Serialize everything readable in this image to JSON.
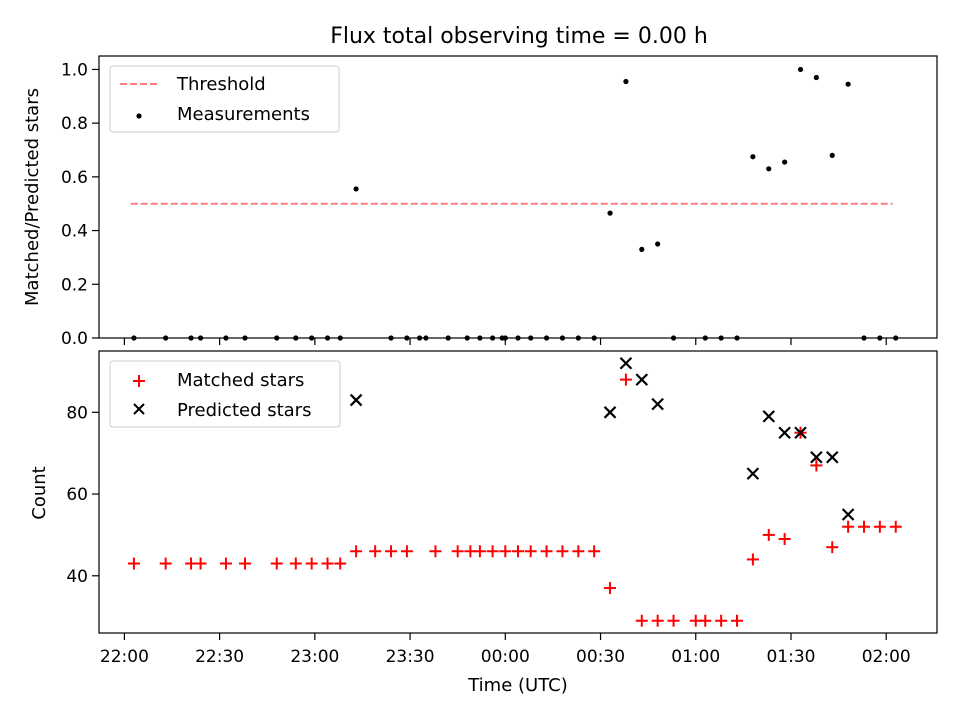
{
  "title": "Flux total observing time = 0.00 h",
  "colors": {
    "threshold": "#ff7f7f",
    "measurements": "#000000",
    "matched": "#ff0000",
    "predicted": "#000000"
  },
  "chart_data": [
    {
      "type": "scatter",
      "title": "Flux total observing time = 0.00 h",
      "xlabel": "",
      "ylabel": "Matched/Predicted stars",
      "xlim": [
        "21:52",
        "02:16"
      ],
      "ylim": [
        0,
        1.05
      ],
      "yticks": [
        "0.0",
        "0.2",
        "0.4",
        "0.6",
        "0.8",
        "1.0"
      ],
      "legend": {
        "placement": "upper-left",
        "entries": [
          "Threshold",
          "Measurements"
        ]
      },
      "threshold": {
        "name": "Threshold",
        "value": 0.5,
        "x": [
          "22:02",
          "02:02"
        ],
        "style": "dashed"
      },
      "series": [
        {
          "name": "Measurements",
          "x": [
            "22:03",
            "22:13",
            "22:21",
            "22:24",
            "22:32",
            "22:38",
            "22:48",
            "22:54",
            "22:59",
            "23:04",
            "23:08",
            "23:13",
            "23:24",
            "23:29",
            "23:35",
            "23:42",
            "23:48",
            "23:52",
            "23:56",
            "23:59",
            "00:00",
            "00:04",
            "00:08",
            "00:13",
            "00:18",
            "00:23",
            "00:28",
            "00:33",
            "00:38",
            "00:43",
            "00:48",
            "00:53",
            "01:03",
            "01:08",
            "01:13",
            "01:18",
            "01:23",
            "01:28",
            "01:33",
            "01:38",
            "01:43",
            "01:48",
            "01:53",
            "01:58",
            "02:03",
            "23:33"
          ],
          "values": [
            0,
            0,
            0,
            0,
            0,
            0,
            0,
            0,
            0,
            0,
            0,
            0.555,
            0,
            0,
            0,
            0,
            0,
            0,
            0,
            0,
            0,
            0,
            0,
            0,
            0,
            0,
            0,
            0.465,
            0.955,
            0.33,
            0.35,
            0,
            0,
            0,
            0,
            0.675,
            0.63,
            0.655,
            1.0,
            0.97,
            0.68,
            0.945,
            0,
            0,
            0,
            0
          ]
        }
      ]
    },
    {
      "type": "scatter",
      "xlabel": "Time (UTC)",
      "ylabel": "Count",
      "xlim": [
        "21:52",
        "02:16"
      ],
      "ylim": [
        26,
        95
      ],
      "yticks": [
        "40",
        "60",
        "80"
      ],
      "xticks": [
        "22:00",
        "22:30",
        "23:00",
        "23:30",
        "00:00",
        "00:30",
        "01:00",
        "01:30",
        "02:00"
      ],
      "legend": {
        "placement": "upper-left",
        "entries": [
          "Matched stars",
          "Predicted stars"
        ]
      },
      "series": [
        {
          "name": "Matched stars",
          "x": [
            "22:03",
            "22:13",
            "22:21",
            "22:24",
            "22:32",
            "22:38",
            "22:48",
            "22:54",
            "22:59",
            "23:04",
            "23:08",
            "23:13",
            "23:19",
            "23:24",
            "23:29",
            "23:38",
            "23:45",
            "23:49",
            "23:52",
            "23:56",
            "00:00",
            "00:04",
            "00:08",
            "00:13",
            "00:18",
            "00:23",
            "00:28",
            "00:33",
            "00:38",
            "00:43",
            "00:48",
            "00:53",
            "01:00",
            "01:03",
            "01:08",
            "01:13",
            "01:18",
            "01:23",
            "01:28",
            "01:33",
            "01:38",
            "01:43",
            "01:48",
            "01:53",
            "01:58",
            "02:03"
          ],
          "values": [
            43,
            43,
            43,
            43,
            43,
            43,
            43,
            43,
            43,
            43,
            43,
            46,
            46,
            46,
            46,
            46,
            46,
            46,
            46,
            46,
            46,
            46,
            46,
            46,
            46,
            46,
            46,
            37,
            88,
            29,
            29,
            29,
            29,
            29,
            29,
            29,
            44,
            50,
            49,
            75,
            67,
            47,
            52,
            52,
            52,
            52
          ]
        },
        {
          "name": "Predicted stars",
          "x": [
            "23:13",
            "00:33",
            "00:38",
            "00:43",
            "00:48",
            "01:18",
            "01:23",
            "01:28",
            "01:33",
            "01:38",
            "01:43",
            "01:48"
          ],
          "values": [
            83,
            80,
            92,
            88,
            82,
            65,
            79,
            75,
            75,
            69,
            69,
            55
          ]
        }
      ]
    }
  ]
}
